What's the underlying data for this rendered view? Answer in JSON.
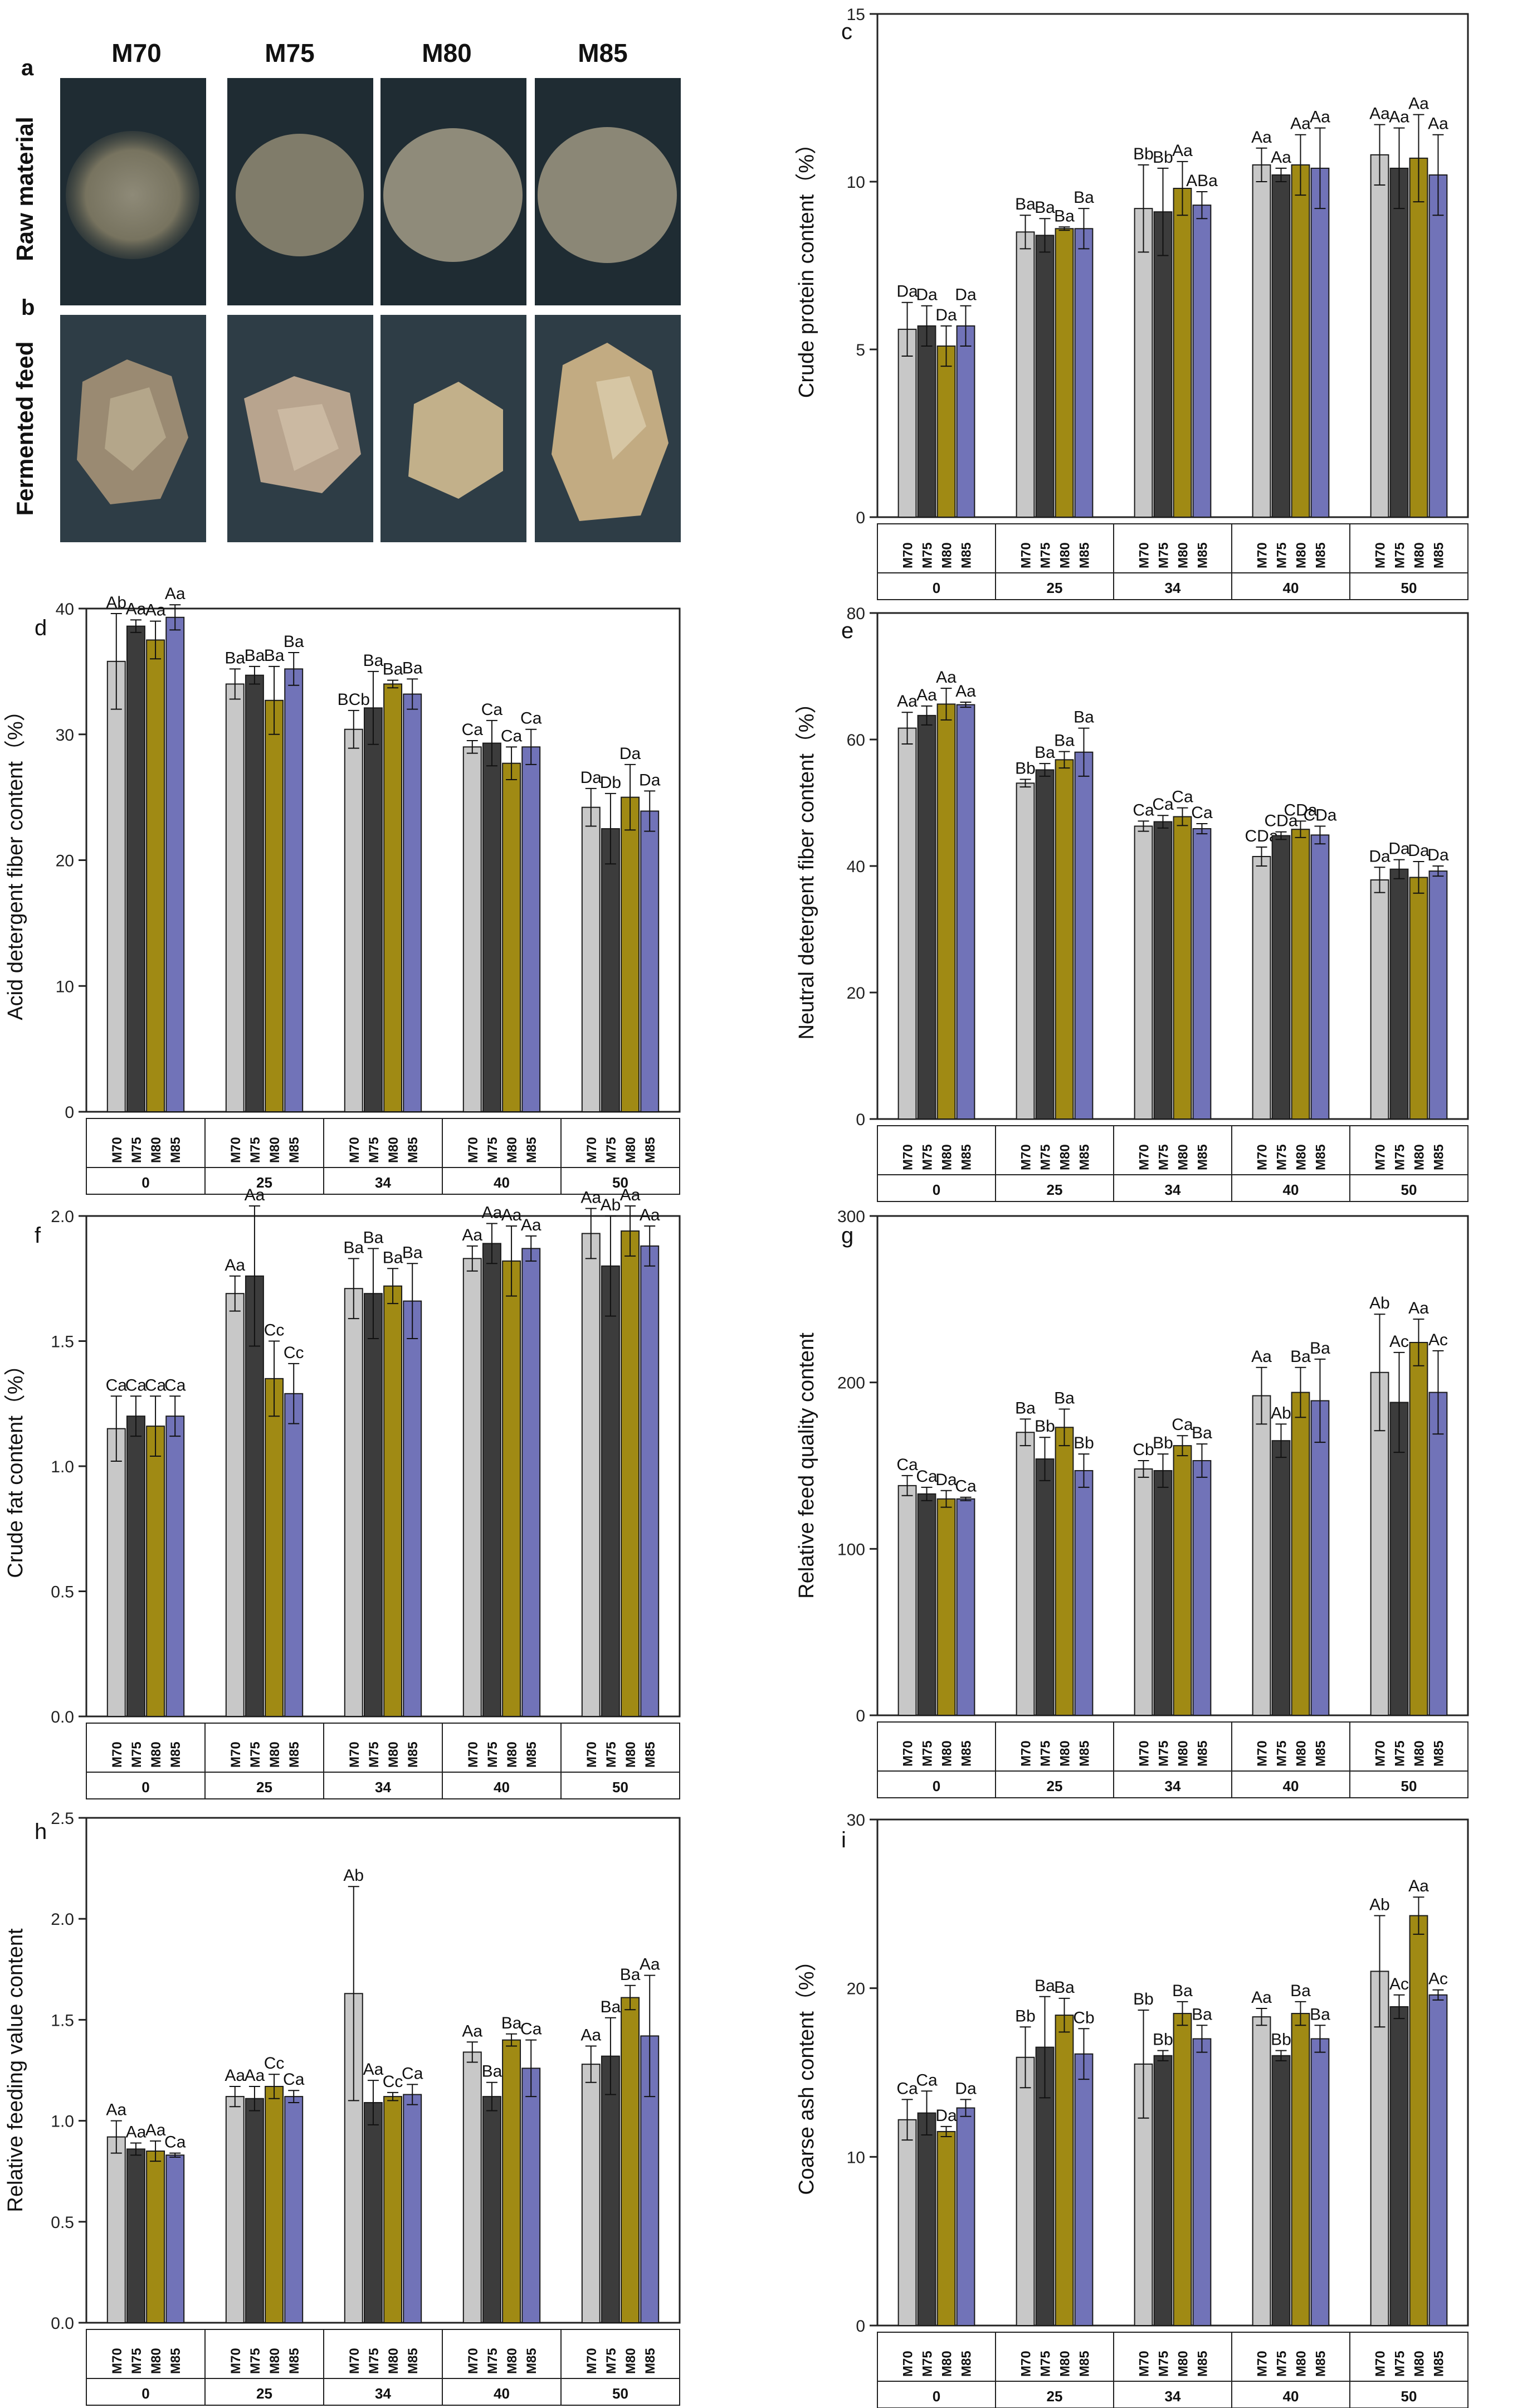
{
  "photos": {
    "label_a": "a",
    "label_b": "b",
    "columns": [
      "M70",
      "M75",
      "M80",
      "M85"
    ],
    "row_raw": "Raw material",
    "row_fermented": "Fermented feed"
  },
  "colors": {
    "M70": "#c8c8c8",
    "M75": "#3c3c3c",
    "M80": "#a08a14",
    "M85": "#7173b8"
  },
  "chart_data": [
    {
      "id": "c",
      "type": "bar",
      "panel": "c",
      "ylabel": "Crude protein content（%）",
      "groups": [
        "0",
        "25",
        "34",
        "40",
        "50"
      ],
      "series_names": [
        "M70",
        "M75",
        "M80",
        "M85"
      ],
      "ylim": [
        0,
        15
      ],
      "yticks": [
        "0",
        "5",
        "10",
        "15"
      ],
      "values": [
        [
          5.6,
          5.7,
          5.1,
          5.7
        ],
        [
          8.5,
          8.4,
          8.6,
          8.6
        ],
        [
          9.2,
          9.1,
          9.8,
          9.3
        ],
        [
          10.5,
          10.2,
          10.5,
          10.4
        ],
        [
          10.8,
          10.4,
          10.7,
          10.2
        ]
      ],
      "errors": [
        [
          0.8,
          0.6,
          0.6,
          0.6
        ],
        [
          0.5,
          0.5,
          0.05,
          0.6
        ],
        [
          1.3,
          1.3,
          0.8,
          0.4
        ],
        [
          0.5,
          0.2,
          0.9,
          1.2
        ],
        [
          0.9,
          1.2,
          1.3,
          1.2
        ]
      ],
      "labels": [
        [
          "Da",
          "Da",
          "Da",
          "Da"
        ],
        [
          "Ba",
          "Ba",
          "Ba",
          "Ba"
        ],
        [
          "Bb",
          "Bb",
          "Aa",
          "ABa"
        ],
        [
          "Aa",
          "Aa",
          "Aa",
          "Aa"
        ],
        [
          "Aa",
          "Aa",
          "Aa",
          "Aa"
        ]
      ]
    },
    {
      "id": "d",
      "type": "bar",
      "panel": "d",
      "ylabel": "Acid detergent fiber content（%）",
      "groups": [
        "0",
        "25",
        "34",
        "40",
        "50"
      ],
      "series_names": [
        "M70",
        "M75",
        "M80",
        "M85"
      ],
      "ylim": [
        0,
        40
      ],
      "yticks": [
        "0",
        "10",
        "20",
        "30",
        "40"
      ],
      "values": [
        [
          35.8,
          38.6,
          37.5,
          39.3
        ],
        [
          34.0,
          34.7,
          32.7,
          35.2
        ],
        [
          30.4,
          32.1,
          34.0,
          33.2
        ],
        [
          29.0,
          29.3,
          27.7,
          29.0
        ],
        [
          24.2,
          22.5,
          25.0,
          23.9
        ]
      ],
      "errors": [
        [
          3.8,
          0.5,
          1.5,
          1.0
        ],
        [
          1.2,
          0.7,
          2.7,
          1.3
        ],
        [
          1.5,
          2.9,
          0.3,
          1.2
        ],
        [
          0.5,
          1.8,
          1.3,
          1.4
        ],
        [
          1.5,
          2.8,
          2.6,
          1.6
        ]
      ],
      "labels": [
        [
          "Ab",
          "Aa",
          "Aa",
          "Aa"
        ],
        [
          "Ba",
          "Ba",
          "Ba",
          "Ba"
        ],
        [
          "BCb",
          "Ba",
          "Ba",
          "Ba"
        ],
        [
          "Ca",
          "Ca",
          "Ca",
          "Ca"
        ],
        [
          "Da",
          "Db",
          "Da",
          "Da"
        ]
      ]
    },
    {
      "id": "e",
      "type": "bar",
      "panel": "e",
      "ylabel": "Neutral detergent fiber content（%）",
      "groups": [
        "0",
        "25",
        "34",
        "40",
        "50"
      ],
      "series_names": [
        "M70",
        "M75",
        "M80",
        "M85"
      ],
      "ylim": [
        0,
        80
      ],
      "yticks": [
        "0",
        "20",
        "40",
        "60",
        "80"
      ],
      "values": [
        [
          61.8,
          63.8,
          65.6,
          65.5
        ],
        [
          53.1,
          55.2,
          56.8,
          58.0
        ],
        [
          46.3,
          47.0,
          47.8,
          45.9
        ],
        [
          41.5,
          44.8,
          45.8,
          44.9
        ],
        [
          37.8,
          39.5,
          38.2,
          39.2
        ]
      ],
      "errors": [
        [
          2.5,
          1.5,
          2.5,
          0.4
        ],
        [
          0.6,
          1.0,
          1.3,
          3.8
        ],
        [
          0.8,
          1.0,
          1.4,
          0.8
        ],
        [
          1.5,
          0.6,
          1.3,
          1.4
        ],
        [
          2.0,
          1.5,
          2.5,
          0.8
        ]
      ],
      "labels": [
        [
          "Aa",
          "Aa",
          "Aa",
          "Aa"
        ],
        [
          "Bb",
          "Ba",
          "Ba",
          "Ba"
        ],
        [
          "Ca",
          "Ca",
          "Ca",
          "Ca"
        ],
        [
          "CDa",
          "CDa",
          "CDa",
          "CDa"
        ],
        [
          "Da",
          "Da",
          "Da",
          "Da"
        ]
      ]
    },
    {
      "id": "f",
      "type": "bar",
      "panel": "f",
      "ylabel": "Crude fat content（%）",
      "groups": [
        "0",
        "25",
        "34",
        "40",
        "50"
      ],
      "series_names": [
        "M70",
        "M75",
        "M80",
        "M85"
      ],
      "ylim": [
        0,
        2.0
      ],
      "yticks": [
        "0.0",
        "0.5",
        "1.0",
        "1.5",
        "2.0"
      ],
      "values": [
        [
          1.15,
          1.2,
          1.16,
          1.2
        ],
        [
          1.69,
          1.76,
          1.35,
          1.29
        ],
        [
          1.71,
          1.69,
          1.72,
          1.66
        ],
        [
          1.83,
          1.89,
          1.82,
          1.87
        ],
        [
          1.93,
          1.8,
          1.94,
          1.88
        ]
      ],
      "errors": [
        [
          0.13,
          0.08,
          0.12,
          0.08
        ],
        [
          0.07,
          0.28,
          0.15,
          0.12
        ],
        [
          0.12,
          0.18,
          0.07,
          0.15
        ],
        [
          0.05,
          0.08,
          0.14,
          0.05
        ],
        [
          0.1,
          0.2,
          0.1,
          0.08
        ]
      ],
      "labels": [
        [
          "Ca",
          "Ca",
          "Ca",
          "Ca"
        ],
        [
          "Aa",
          "Aa",
          "Cc",
          "Cc"
        ],
        [
          "Ba",
          "Ba",
          "Ba",
          "Ba"
        ],
        [
          "Aa",
          "Aa",
          "Aa",
          "Aa"
        ],
        [
          "Aa",
          "Ab",
          "Aa",
          "Aa"
        ]
      ]
    },
    {
      "id": "g",
      "type": "bar",
      "panel": "g",
      "ylabel": "Relative feed quality content",
      "groups": [
        "0",
        "25",
        "34",
        "40",
        "50"
      ],
      "series_names": [
        "M70",
        "M75",
        "M80",
        "M85"
      ],
      "ylim": [
        0,
        300
      ],
      "yticks": [
        "0",
        "100",
        "200",
        "300"
      ],
      "values": [
        [
          138,
          133,
          130,
          130
        ],
        [
          170,
          154,
          173,
          147
        ],
        [
          148,
          147,
          162,
          153
        ],
        [
          192,
          165,
          194,
          189
        ],
        [
          206,
          188,
          224,
          194
        ]
      ],
      "errors": [
        [
          6,
          4,
          5,
          1
        ],
        [
          8,
          13,
          11,
          10
        ],
        [
          5,
          10,
          6,
          10
        ],
        [
          17,
          10,
          15,
          25
        ],
        [
          35,
          30,
          14,
          25
        ]
      ],
      "labels": [
        [
          "Ca",
          "Ca",
          "Da",
          "Ca"
        ],
        [
          "Ba",
          "Bb",
          "Ba",
          "Bb"
        ],
        [
          "Cb",
          "Bb",
          "Ca",
          "Ba"
        ],
        [
          "Aa",
          "Ab",
          "Ba",
          "Ba"
        ],
        [
          "Ab",
          "Ac",
          "Aa",
          "Ac"
        ]
      ]
    },
    {
      "id": "h",
      "type": "bar",
      "panel": "h",
      "ylabel": "Relative feeding value content",
      "groups": [
        "0",
        "25",
        "34",
        "40",
        "50"
      ],
      "series_names": [
        "M70",
        "M75",
        "M80",
        "M85"
      ],
      "ylim": [
        0,
        2.5
      ],
      "yticks": [
        "0.0",
        "0.5",
        "1.0",
        "1.5",
        "2.0",
        "2.5"
      ],
      "values": [
        [
          0.92,
          0.86,
          0.85,
          0.83
        ],
        [
          1.12,
          1.11,
          1.17,
          1.12
        ],
        [
          1.63,
          1.09,
          1.12,
          1.13
        ],
        [
          1.34,
          1.12,
          1.4,
          1.26
        ],
        [
          1.28,
          1.32,
          1.61,
          1.42
        ]
      ],
      "errors": [
        [
          0.08,
          0.03,
          0.05,
          0.01
        ],
        [
          0.05,
          0.06,
          0.06,
          0.03
        ],
        [
          0.53,
          0.11,
          0.02,
          0.05
        ],
        [
          0.05,
          0.07,
          0.03,
          0.14
        ],
        [
          0.09,
          0.19,
          0.06,
          0.3
        ]
      ],
      "labels": [
        [
          "Aa",
          "Aa",
          "Aa",
          "Ca"
        ],
        [
          "Aa",
          "Aa",
          "Cc",
          "Ca"
        ],
        [
          "Ab",
          "Aa",
          "Cc",
          "Ca"
        ],
        [
          "Aa",
          "Ba",
          "Ba",
          "Ca"
        ],
        [
          "Aa",
          "Ba",
          "Ba",
          "Aa"
        ]
      ]
    },
    {
      "id": "i",
      "type": "bar",
      "panel": "i",
      "ylabel": "Coarse ash content（%）",
      "groups": [
        "0",
        "25",
        "34",
        "40",
        "50"
      ],
      "series_names": [
        "M70",
        "M75",
        "M80",
        "M85"
      ],
      "ylim": [
        0,
        30
      ],
      "yticks": [
        "0",
        "10",
        "20",
        "30"
      ],
      "values": [
        [
          12.2,
          12.6,
          11.5,
          12.9
        ],
        [
          15.9,
          16.5,
          18.4,
          16.1
        ],
        [
          15.5,
          16.0,
          18.5,
          17.0
        ],
        [
          18.3,
          16.0,
          18.5,
          17.0
        ],
        [
          21.0,
          18.9,
          24.3,
          19.6
        ]
      ],
      "errors": [
        [
          1.2,
          1.3,
          0.3,
          0.5
        ],
        [
          1.8,
          3.0,
          1.0,
          1.5
        ],
        [
          3.2,
          0.3,
          0.7,
          0.8
        ],
        [
          0.5,
          0.3,
          0.7,
          0.8
        ],
        [
          3.3,
          0.7,
          1.1,
          0.3
        ]
      ],
      "labels": [
        [
          "Ca",
          "Ca",
          "Da",
          "Da"
        ],
        [
          "Bb",
          "Ba",
          "Ba",
          "Cb"
        ],
        [
          "Bb",
          "Bb",
          "Ba",
          "Ba"
        ],
        [
          "Aa",
          "Bb",
          "Ba",
          "Ba"
        ],
        [
          "Ab",
          "Ac",
          "Aa",
          "Ac"
        ]
      ]
    }
  ]
}
